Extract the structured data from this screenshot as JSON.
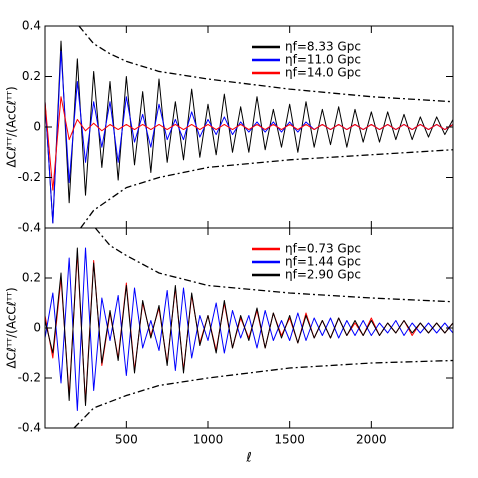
{
  "chart_data": [
    {
      "type": "line",
      "ylabel": "ΔCℓᵀᵀ/(AcCℓᵀᵀ)",
      "ylim": [
        -0.4,
        0.4
      ],
      "yticks": [
        -0.4,
        -0.2,
        0,
        0.2,
        0.4
      ],
      "x": [
        2,
        50,
        100,
        150,
        200,
        250,
        300,
        350,
        400,
        450,
        500,
        550,
        600,
        650,
        700,
        750,
        800,
        850,
        900,
        950,
        1000,
        1050,
        1100,
        1150,
        1200,
        1250,
        1300,
        1350,
        1400,
        1450,
        1500,
        1550,
        1600,
        1650,
        1700,
        1750,
        1800,
        1850,
        1900,
        1950,
        2000,
        2050,
        2100,
        2150,
        2200,
        2250,
        2300,
        2350,
        2400,
        2450,
        2500
      ],
      "series": [
        {
          "name": "ηf=8.33 Gpc",
          "color": "#000000",
          "values": [
            0.1,
            -0.38,
            0.34,
            -0.3,
            0.27,
            -0.27,
            0.22,
            -0.16,
            0.18,
            -0.21,
            0.2,
            -0.15,
            0.14,
            -0.18,
            0.19,
            -0.14,
            0.1,
            -0.13,
            0.15,
            -0.12,
            0.09,
            -0.11,
            0.13,
            -0.1,
            0.08,
            -0.1,
            0.12,
            -0.09,
            0.07,
            -0.08,
            0.09,
            -0.1,
            0.1,
            -0.08,
            0.07,
            -0.07,
            0.08,
            -0.08,
            0.07,
            -0.06,
            0.06,
            -0.06,
            0.06,
            -0.05,
            0.05,
            -0.05,
            0.04,
            -0.04,
            0.04,
            -0.03,
            0.03
          ]
        },
        {
          "name": "ηf=11.0 Gpc",
          "color": "#0000ff",
          "values": [
            0.1,
            -0.38,
            0.3,
            -0.22,
            0.18,
            -0.14,
            0.1,
            -0.08,
            0.1,
            -0.14,
            0.12,
            -0.06,
            0.05,
            -0.08,
            0.09,
            -0.05,
            0.03,
            -0.05,
            0.06,
            -0.04,
            0.03,
            -0.03,
            0.04,
            -0.03,
            0.02,
            -0.02,
            0.02,
            -0.02,
            0.02,
            -0.02,
            0.02,
            -0.02,
            0.02,
            -0.01,
            0.01,
            -0.01,
            0.01,
            -0.01,
            0.01,
            -0.01,
            0.01,
            -0.01,
            0.01,
            -0.01,
            0.01,
            -0.01,
            0.01,
            -0.01,
            0.01,
            -0.01,
            0.01
          ]
        },
        {
          "name": "ηf=14.0 Gpc",
          "color": "#ff0000",
          "values": [
            0.1,
            -0.25,
            0.12,
            -0.05,
            0.03,
            -0.015,
            0.015,
            -0.015,
            0.01,
            -0.01,
            0.01,
            -0.01,
            0.01,
            -0.01,
            0.01,
            -0.01,
            0.01,
            -0.01,
            0.01,
            -0.01,
            0.01,
            -0.01,
            0.01,
            -0.01,
            0.01,
            -0.01,
            0.01,
            -0.01,
            0.01,
            -0.01,
            0.01,
            -0.01,
            0.01,
            -0.01,
            0.01,
            -0.01,
            0.01,
            -0.01,
            0.01,
            -0.01,
            0.01,
            -0.01,
            0.01,
            -0.01,
            0.01,
            -0.01,
            0.01,
            -0.01,
            0.01,
            -0.01,
            0.01
          ]
        },
        {
          "color": "#000000",
          "style": "dashdot",
          "x": [
            210,
            300,
            400,
            500,
            700,
            1000,
            1500,
            2000,
            2500
          ],
          "values": [
            0.4,
            0.33,
            0.29,
            0.26,
            0.22,
            0.19,
            0.15,
            0.12,
            0.1
          ]
        },
        {
          "color": "#000000",
          "style": "dashdot",
          "x": [
            220,
            300,
            500,
            700,
            1000,
            1500,
            2000,
            2500
          ],
          "values": [
            -0.4,
            -0.33,
            -0.24,
            -0.2,
            -0.16,
            -0.13,
            -0.11,
            -0.09
          ]
        }
      ]
    },
    {
      "type": "line",
      "ylabel": "ΔCℓᵀᵀ/(AcCℓᵀᵀ)",
      "xlabel": "ℓ",
      "xlim": [
        2,
        2500
      ],
      "xticks": [
        500,
        1000,
        1500,
        2000
      ],
      "ylim": [
        -0.4,
        0.4
      ],
      "yticks": [
        -0.4,
        -0.2,
        0,
        0.2
      ],
      "x": [
        2,
        50,
        100,
        150,
        200,
        250,
        300,
        350,
        400,
        450,
        500,
        550,
        600,
        650,
        700,
        750,
        800,
        850,
        900,
        950,
        1000,
        1050,
        1100,
        1150,
        1200,
        1250,
        1300,
        1350,
        1400,
        1450,
        1500,
        1550,
        1600,
        1650,
        1700,
        1750,
        1800,
        1850,
        1900,
        1950,
        2000,
        2050,
        2100,
        2150,
        2200,
        2250,
        2300,
        2350,
        2400,
        2450,
        2500
      ],
      "series": [
        {
          "name": "ηf=0.73 Gpc",
          "color": "#ff0000",
          "values": [
            0.05,
            -0.12,
            0.2,
            -0.27,
            0.3,
            -0.3,
            0.27,
            -0.15,
            0.06,
            -0.12,
            0.18,
            -0.17,
            0.1,
            -0.03,
            0.08,
            -0.14,
            0.16,
            -0.17,
            0.13,
            -0.06,
            0.05,
            -0.09,
            0.1,
            -0.08,
            0.04,
            -0.04,
            0.07,
            -0.08,
            0.06,
            -0.03,
            0.04,
            -0.06,
            0.06,
            -0.04,
            0.03,
            -0.04,
            0.04,
            -0.03,
            0.02,
            -0.03,
            0.04,
            -0.03,
            0.02,
            -0.02,
            0.03,
            -0.03,
            0.02,
            -0.02,
            0.02,
            -0.02,
            0.02
          ]
        },
        {
          "name": "ηf=1.44 Gpc",
          "color": "#0000ff",
          "values": [
            -0.04,
            0.14,
            -0.22,
            0.28,
            -0.33,
            0.32,
            -0.25,
            0.12,
            -0.05,
            0.13,
            -0.19,
            0.16,
            -0.08,
            0.03,
            -0.09,
            0.15,
            -0.17,
            0.16,
            -0.12,
            0.05,
            -0.05,
            0.1,
            -0.1,
            0.07,
            -0.04,
            0.05,
            -0.08,
            0.07,
            -0.05,
            0.03,
            -0.05,
            0.06,
            -0.05,
            0.04,
            -0.03,
            0.04,
            -0.04,
            0.03,
            -0.03,
            0.03,
            -0.03,
            0.02,
            -0.02,
            0.03,
            -0.03,
            0.02,
            -0.02,
            0.02,
            -0.02,
            0.02,
            -0.02
          ]
        },
        {
          "name": "ηf=2.90 Gpc",
          "color": "#000000",
          "values": [
            0.03,
            -0.1,
            0.22,
            -0.29,
            0.32,
            -0.31,
            0.26,
            -0.14,
            0.07,
            -0.13,
            0.17,
            -0.18,
            0.11,
            -0.04,
            0.09,
            -0.15,
            0.17,
            -0.18,
            0.14,
            -0.07,
            0.05,
            -0.1,
            0.11,
            -0.08,
            0.05,
            -0.05,
            0.08,
            -0.08,
            0.06,
            -0.04,
            0.05,
            -0.06,
            0.05,
            -0.04,
            0.03,
            -0.04,
            0.04,
            -0.03,
            0.03,
            -0.03,
            0.03,
            -0.03,
            0.02,
            -0.02,
            0.03,
            -0.02,
            0.02,
            -0.02,
            0.02,
            -0.02,
            0.02
          ]
        },
        {
          "color": "#000000",
          "style": "dashdot",
          "x": [
            310,
            400,
            500,
            700,
            1000,
            1500,
            2000,
            2500
          ],
          "values": [
            0.4,
            0.33,
            0.29,
            0.22,
            0.17,
            0.14,
            0.12,
            0.105
          ]
        },
        {
          "color": "#000000",
          "style": "dashdot",
          "x": [
            180,
            300,
            500,
            700,
            1000,
            1500,
            2000,
            2500
          ],
          "values": [
            -0.4,
            -0.32,
            -0.27,
            -0.23,
            -0.2,
            -0.16,
            -0.14,
            -0.13
          ]
        }
      ]
    }
  ]
}
